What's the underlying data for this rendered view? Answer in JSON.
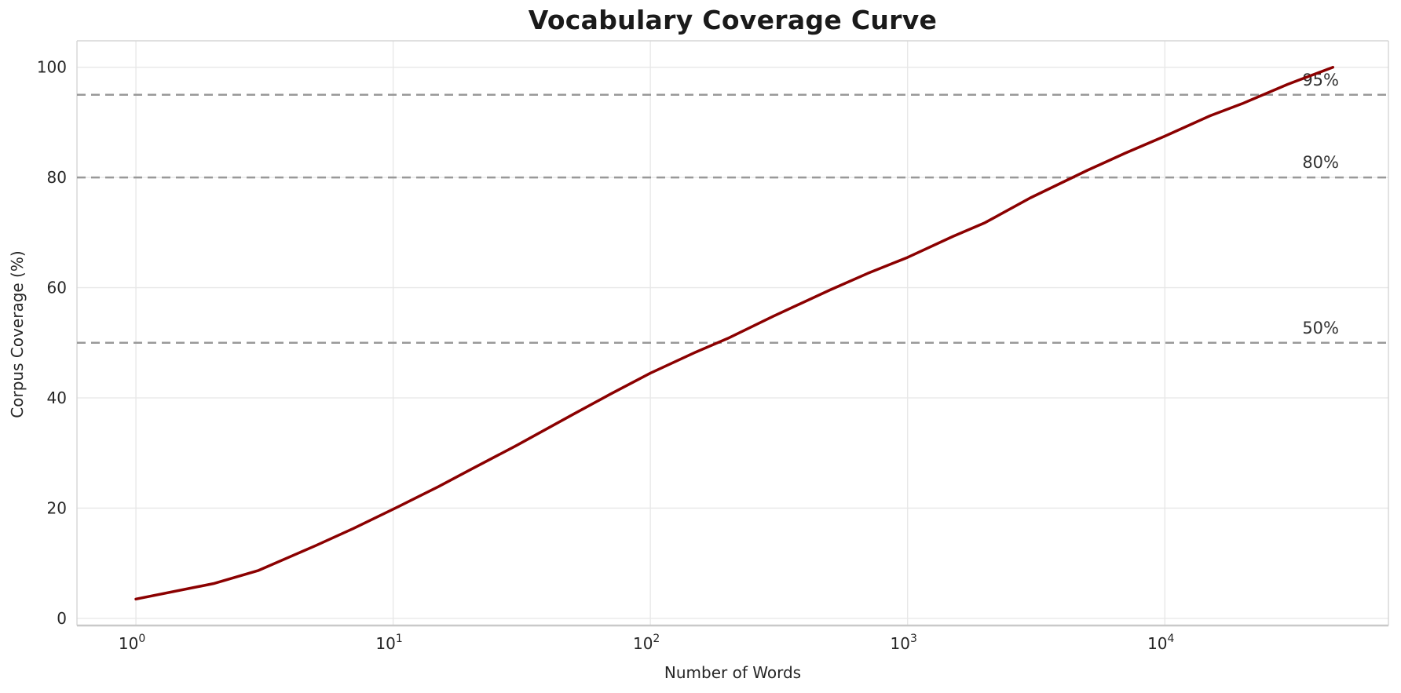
{
  "title": "Vocabulary Coverage Curve",
  "colors": {
    "curve": "#8b0000",
    "reference_line": "#999999",
    "grid": "#e7e7e7",
    "spine": "#d6d6d6",
    "bottom_spine": "#c9c9c9",
    "text": "#262626",
    "background": "#ffffff"
  },
  "chart_data": {
    "type": "line",
    "title": "Vocabulary Coverage Curve",
    "xlabel": "Number of Words",
    "ylabel": "Corpus Coverage (%)",
    "x_scale": "log",
    "xlim": [
      0.59,
      74000
    ],
    "ylim": [
      -1.3,
      104.8
    ],
    "x_ticks": [
      1,
      10,
      100,
      1000,
      10000
    ],
    "y_ticks": [
      0,
      20,
      40,
      60,
      80,
      100
    ],
    "grid": true,
    "legend": false,
    "series": [
      {
        "name": "coverage",
        "color": "#8b0000",
        "x": [
          1,
          2,
          3,
          5,
          7,
          10,
          15,
          20,
          30,
          50,
          70,
          100,
          150,
          200,
          300,
          500,
          700,
          1000,
          1500,
          2000,
          3000,
          5000,
          7000,
          10000,
          15000,
          20000,
          30000,
          45000
        ],
        "y": [
          3.5,
          6.3,
          8.7,
          13.2,
          16.3,
          19.8,
          23.9,
          27.0,
          31.3,
          37.0,
          40.7,
          44.5,
          48.3,
          50.8,
          54.8,
          59.6,
          62.6,
          65.5,
          69.3,
          71.8,
          76.3,
          81.3,
          84.4,
          87.5,
          91.2,
          93.4,
          96.9,
          100.0
        ]
      }
    ],
    "reference_lines": [
      {
        "value": 50,
        "label": "50%"
      },
      {
        "value": 80,
        "label": "80%"
      },
      {
        "value": 95,
        "label": "95%"
      }
    ]
  }
}
